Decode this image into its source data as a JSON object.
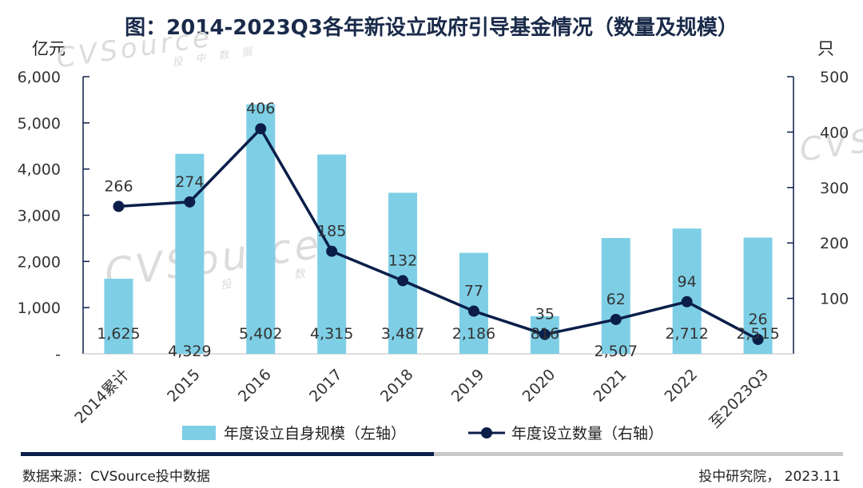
{
  "title": "图：2014-2023Q3各年新设立政府引导基金情况（数量及规模）",
  "left_unit": "亿元",
  "right_unit": "只",
  "watermark": {
    "text": "CVSource",
    "sub": "投 中 数 据"
  },
  "legend": {
    "bar": "年度设立自身规模（左轴）",
    "line": "年度设立数量（右轴）"
  },
  "footer": {
    "source": "数据来源：CVSource投中数据",
    "credit": "投中研究院， 2023.11"
  },
  "colors": {
    "bar": "#7ecfe6",
    "line": "#0b1e4a",
    "axis": "#0b1e4a"
  },
  "chart_data": {
    "type": "bar",
    "categories": [
      "2014累计",
      "2015",
      "2016",
      "2017",
      "2018",
      "2019",
      "2020",
      "2021",
      "2022",
      "至2023Q3"
    ],
    "series": [
      {
        "name": "年度设立自身规模（左轴）",
        "type": "bar",
        "axis": "left",
        "values": [
          1625,
          4329,
          5402,
          4315,
          3487,
          2186,
          816,
          2507,
          2712,
          2515
        ],
        "labels": [
          "1,625",
          "4,329",
          "5,402",
          "4,315",
          "3,487",
          "2,186",
          "816",
          "2,507",
          "2,712",
          "2,515"
        ]
      },
      {
        "name": "年度设立数量（右轴）",
        "type": "line",
        "axis": "right",
        "values": [
          266,
          274,
          406,
          185,
          132,
          77,
          35,
          62,
          94,
          26
        ],
        "labels": [
          "266",
          "274",
          "406",
          "185",
          "132",
          "77",
          "35",
          "62",
          "94",
          "26"
        ]
      }
    ],
    "left_axis": {
      "ylim": [
        0,
        6000
      ],
      "ticks": [
        "-",
        "1,000",
        "2,000",
        "3,000",
        "4,000",
        "5,000",
        "6,000"
      ],
      "tick_values": [
        0,
        1000,
        2000,
        3000,
        4000,
        5000,
        6000
      ]
    },
    "right_axis": {
      "ylim": [
        0,
        500
      ],
      "ticks": [
        "100",
        "200",
        "300",
        "400",
        "500"
      ],
      "tick_values": [
        100,
        200,
        300,
        400,
        500
      ]
    },
    "grid": false,
    "legend_position": "bottom"
  }
}
